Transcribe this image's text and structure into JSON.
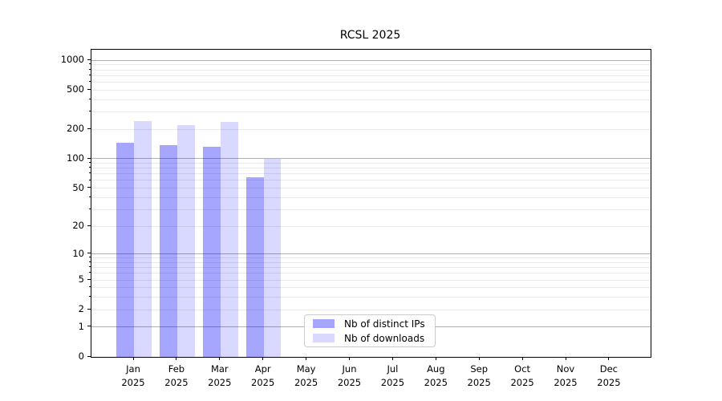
{
  "title": "RCSL 2025",
  "chart_data": {
    "type": "bar",
    "title": "RCSL 2025",
    "y_scale": "log1p",
    "grid": true,
    "legend_position": "lower-center",
    "categories": [
      "Jan",
      "Feb",
      "Mar",
      "Apr",
      "May",
      "Jun",
      "Jul",
      "Aug",
      "Sep",
      "Oct",
      "Nov",
      "Dec"
    ],
    "category_year": "2025",
    "series": [
      {
        "name": "Nb of distinct IPs",
        "color": "rgba(0,0,255,0.35)",
        "values": [
          145,
          137,
          132,
          65,
          null,
          null,
          null,
          null,
          null,
          null,
          null,
          null
        ]
      },
      {
        "name": "Nb of downloads",
        "color": "rgba(0,0,255,0.15)",
        "values": [
          240,
          222,
          237,
          100,
          null,
          null,
          null,
          null,
          null,
          null,
          null,
          null
        ]
      }
    ],
    "y_tick_labels": [
      0,
      1,
      2,
      5,
      10,
      20,
      50,
      100,
      200,
      500,
      1000
    ],
    "y_major_gridlines": [
      1,
      10,
      100,
      1000
    ],
    "y_minor_gridlines": [
      2,
      3,
      4,
      5,
      6,
      7,
      8,
      9,
      20,
      30,
      40,
      50,
      60,
      70,
      80,
      90,
      200,
      300,
      400,
      500,
      600,
      700,
      800,
      900
    ],
    "ylim": [
      0,
      1280
    ]
  },
  "colors": {
    "background": "#ffffff",
    "axis": "#000000",
    "major_grid": "#b0b0b0",
    "minor_grid": "#e9e9e9",
    "legend_border": "#cccccc",
    "text": "#000000"
  },
  "legend": {
    "items": [
      {
        "label": "Nb of distinct IPs"
      },
      {
        "label": "Nb of downloads"
      }
    ]
  }
}
